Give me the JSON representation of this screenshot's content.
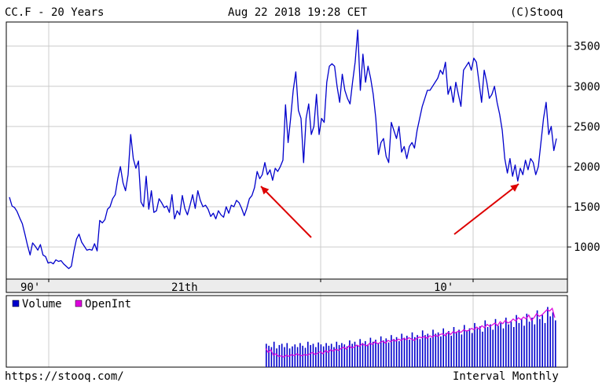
{
  "header": {
    "symbol_label": "CC.F - 20 Years",
    "timestamp": "Aug 22 2018 19:28 CET",
    "copyright": "(C)Stooq"
  },
  "footer": {
    "url": "https://stooq.com/",
    "interval": "Interval Monthly"
  },
  "colors": {
    "price_line": "#0000cc",
    "volume": "#0000cc",
    "open_interest": "#dd00dd",
    "arrow": "#dd0000",
    "grid": "#cccccc"
  },
  "chart_data": [
    {
      "type": "line",
      "title": "CC.F - 20 Years",
      "xlabel": "",
      "ylabel": "",
      "x_ticks": [
        "90'",
        "21th",
        "10'"
      ],
      "y_ticks": [
        "3500",
        "3000",
        "2500",
        "2000",
        "1500",
        "1000"
      ],
      "ylim": [
        600,
        3800
      ],
      "grid": true,
      "series": [
        {
          "values": [
            1620,
            1510,
            1490,
            1440,
            1360,
            1290,
            1160,
            1020,
            900,
            1050,
            1010,
            960,
            1030,
            900,
            880,
            800,
            810,
            790,
            840,
            820,
            830,
            790,
            760,
            730,
            760,
            950,
            1100,
            1160,
            1060,
            1010,
            960,
            970,
            960,
            1040,
            950,
            1330,
            1300,
            1340,
            1470,
            1500,
            1600,
            1650,
            1850,
            2000,
            1800,
            1700,
            1900,
            2400,
            2100,
            1980,
            2070,
            1560,
            1500,
            1880,
            1470,
            1700,
            1430,
            1450,
            1600,
            1550,
            1490,
            1510,
            1430,
            1650,
            1350,
            1450,
            1400,
            1640,
            1480,
            1400,
            1520,
            1650,
            1480,
            1700,
            1580,
            1500,
            1520,
            1470,
            1380,
            1420,
            1350,
            1450,
            1400,
            1370,
            1500,
            1420,
            1520,
            1500,
            1580,
            1550,
            1480,
            1390,
            1480,
            1600,
            1640,
            1740,
            1940,
            1850,
            1900,
            2050,
            1900,
            1960,
            1830,
            1980,
            1940,
            2000,
            2080,
            2770,
            2300,
            2600,
            2950,
            3180,
            2700,
            2600,
            2050,
            2600,
            2780,
            2400,
            2500,
            2900,
            2400,
            2600,
            2550,
            3050,
            3250,
            3280,
            3250,
            3000,
            2800,
            3150,
            2950,
            2850,
            2780,
            3050,
            3300,
            3700,
            2950,
            3400,
            3050,
            3250,
            3100,
            2900,
            2600,
            2150,
            2300,
            2350,
            2130,
            2050,
            2550,
            2450,
            2350,
            2500,
            2180,
            2250,
            2100,
            2250,
            2300,
            2230,
            2450,
            2600,
            2750,
            2850,
            2950,
            2950,
            3000,
            3050,
            3100,
            3200,
            3150,
            3300,
            2900,
            3000,
            2800,
            3050,
            2900,
            2750,
            3200,
            3250,
            3300,
            3200,
            3350,
            3300,
            3050,
            2800,
            3200,
            3050,
            2850,
            2900,
            3000,
            2800,
            2650,
            2450,
            2100,
            1920,
            2100,
            1880,
            2020,
            1820,
            1980,
            1900,
            2080,
            1960,
            2100,
            2050,
            1900,
            2000,
            2300,
            2600,
            2800,
            2400,
            2500,
            2200,
            2350
          ]
        }
      ]
    },
    {
      "type": "bar",
      "title": "",
      "legend": [
        "Volume",
        "OpenInt"
      ],
      "legend_position": "top-left",
      "series": [
        {
          "name": "Volume",
          "values": [
            35,
            32,
            30,
            38,
            28,
            33,
            35,
            30,
            36,
            28,
            31,
            34,
            30,
            36,
            32,
            29,
            38,
            33,
            35,
            30,
            37,
            34,
            31,
            36,
            32,
            35,
            30,
            38,
            33,
            36,
            34,
            31,
            40,
            35,
            38,
            33,
            42,
            36,
            39,
            34,
            44,
            38,
            41,
            36,
            46,
            40,
            43,
            37,
            48,
            42,
            45,
            39,
            50,
            44,
            47,
            41,
            52,
            45,
            48,
            42,
            55,
            48,
            50,
            44,
            56,
            50,
            52,
            46,
            58,
            51,
            54,
            47,
            60,
            53,
            56,
            49,
            63,
            55,
            58,
            51,
            66,
            58,
            61,
            53,
            70,
            60,
            64,
            56,
            72,
            62,
            66,
            58,
            74,
            64,
            68,
            60,
            78,
            66,
            72,
            62,
            80,
            68,
            74,
            64,
            85,
            72,
            78,
            66,
            90,
            76,
            82,
            70
          ]
        },
        {
          "name": "OpenInt",
          "values": [
            28,
            22,
            26,
            18,
            20,
            16,
            17,
            15,
            18,
            16,
            19,
            17,
            20,
            18,
            17,
            19,
            18,
            20,
            22,
            19,
            21,
            23,
            20,
            25,
            22,
            26,
            24,
            27,
            25,
            28,
            30,
            27,
            32,
            29,
            30,
            33,
            31,
            35,
            33,
            32,
            36,
            34,
            38,
            35,
            37,
            39,
            36,
            40,
            38,
            41,
            39,
            42,
            40,
            43,
            41,
            44,
            42,
            40,
            43,
            45,
            44,
            46,
            43,
            47,
            45,
            48,
            46,
            49,
            50,
            47,
            52,
            49,
            53,
            51,
            54,
            52,
            56,
            54,
            55,
            58,
            56,
            60,
            57,
            62,
            59,
            64,
            61,
            63,
            66,
            62,
            68,
            65,
            70,
            66,
            68,
            72,
            69,
            74,
            71,
            75,
            72,
            78,
            70,
            74,
            80,
            76,
            78,
            82,
            86,
            84,
            88,
            74
          ]
        }
      ]
    }
  ]
}
